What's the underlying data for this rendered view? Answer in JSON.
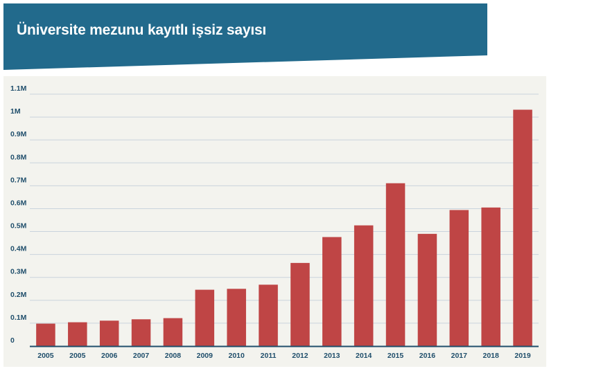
{
  "header": {
    "title": "Üniversite mezunu kayıtlı işsiz sayısı",
    "background_color": "#226a8c"
  },
  "chart_data": {
    "type": "bar",
    "title": "Üniversite mezunu kayıtlı işsiz sayısı",
    "xlabel": "",
    "ylabel": "",
    "categories": [
      "2005",
      "2005",
      "2006",
      "2007",
      "2008",
      "2009",
      "2010",
      "2011",
      "2012",
      "2013",
      "2014",
      "2015",
      "2016",
      "2017",
      "2018",
      "2019"
    ],
    "values": [
      98000,
      104000,
      111000,
      117000,
      122000,
      246000,
      250000,
      268000,
      363000,
      476000,
      527000,
      711000,
      490000,
      594000,
      605000,
      1032000
    ],
    "ylim": [
      0,
      1100000
    ],
    "yticks": [
      0,
      100000,
      200000,
      300000,
      400000,
      500000,
      600000,
      700000,
      800000,
      900000,
      1000000,
      1100000
    ],
    "ytick_labels": [
      "0",
      "0.1M",
      "0.2M",
      "0.3M",
      "0.4M",
      "0.5M",
      "0.6M",
      "0.7M",
      "0.8M",
      "0.9M",
      "1M",
      "1.1M"
    ],
    "grid": true,
    "legend": "none",
    "bar_color": "#bf4545",
    "axis_color": "#1f4e6b",
    "grid_color": "#c9d3dc",
    "plot_background": "#f3f3ee"
  }
}
